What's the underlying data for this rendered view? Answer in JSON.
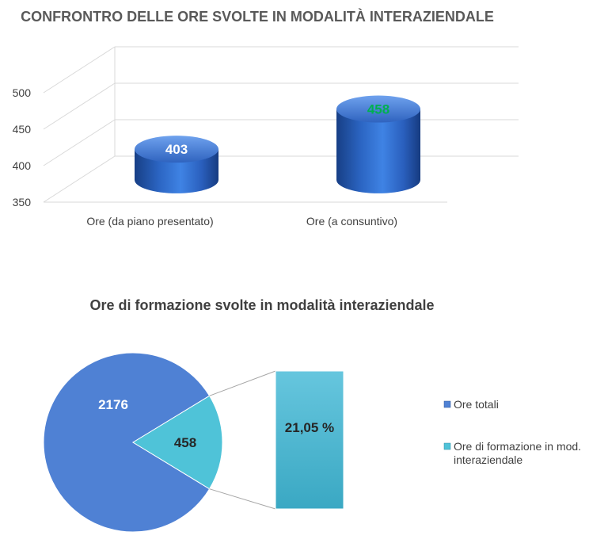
{
  "chart_data": [
    {
      "type": "bar",
      "title": "CONFRONTRO DELLE ORE SVOLTE IN MODALITÀ INTERAZIENDALE",
      "categories": [
        "Ore (da piano presentato)",
        "Ore (a consuntivo)"
      ],
      "values": [
        403,
        458
      ],
      "data_labels": [
        "403",
        "458"
      ],
      "label_colors": [
        "#ffffff",
        "#00b050"
      ],
      "ylim": [
        350,
        500
      ],
      "yticks": [
        "350",
        "400",
        "450",
        "500"
      ],
      "grid": true,
      "style": "3d-cylinder",
      "bar_color": "#2e6fce"
    },
    {
      "type": "pie",
      "title": "Ore di formazione svolte in modalità interaziendale",
      "slices": [
        {
          "label": "Ore totali",
          "value": 2176,
          "data_label": "2176",
          "color": "#4f81d4"
        },
        {
          "label": "Ore di formazione in mod. interaziendale",
          "value": 458,
          "data_label": "458",
          "color": "#4fc3d8"
        }
      ],
      "breakout_bar_label": "21,05 %",
      "legend": [
        "Ore totali",
        "Ore di formazione in mod.",
        "interaziendale"
      ],
      "legend_position": "right"
    }
  ]
}
